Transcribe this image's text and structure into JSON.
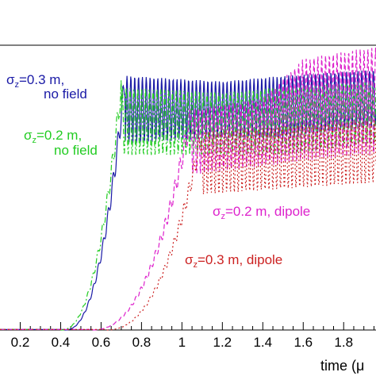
{
  "chart_data": {
    "type": "line",
    "title": "",
    "xlabel": "time (μ",
    "ylabel": "",
    "xlim": [
      0.1,
      1.96
    ],
    "ylim": [
      0,
      1.0
    ],
    "xticks": [
      "0.2",
      "0.4",
      "0.6",
      "0.8",
      "1",
      "1.2",
      "1.4",
      "1.6",
      "1.8"
    ],
    "xtick_values": [
      0.2,
      0.4,
      0.6,
      0.8,
      1.0,
      1.2,
      1.4,
      1.6,
      1.8
    ],
    "grid": false,
    "legend": "inline annotations",
    "series": [
      {
        "name": "σz=0.3 m, no field",
        "label_sym": "σ",
        "label_sub": "z",
        "label_rest": "=0.3 m,",
        "label_line2": "no field",
        "color": "#1a1aa6",
        "style": "solid",
        "onset": 0.42,
        "rise": 0.72,
        "envelope": [
          [
            0.72,
            0.9,
            0.66
          ],
          [
            1.2,
            0.88,
            0.68
          ],
          [
            1.5,
            0.9,
            0.68
          ],
          [
            1.92,
            0.92,
            0.72
          ]
        ]
      },
      {
        "name": "σz=0.2 m, no field",
        "label_sym": "σ",
        "label_sub": "z",
        "label_rest": "=0.2 m,",
        "label_line2": "no field",
        "color": "#22cc22",
        "style": "dashdot",
        "onset": 0.4,
        "rise": 0.7,
        "envelope": [
          [
            0.7,
            0.86,
            0.62
          ],
          [
            1.2,
            0.84,
            0.62
          ],
          [
            1.5,
            0.86,
            0.62
          ],
          [
            1.92,
            0.88,
            0.66
          ]
        ]
      },
      {
        "name": "σz=0.2 m, dipole",
        "label_sym": "σ",
        "label_sub": "z",
        "label_rest": "=0.2 m, dipole",
        "label_line2": "",
        "color": "#dd22cc",
        "style": "dashed",
        "onset": 0.55,
        "rise": 1.05,
        "envelope": [
          [
            1.05,
            0.78,
            0.55
          ],
          [
            1.4,
            0.82,
            0.58
          ],
          [
            1.6,
            0.96,
            0.6
          ],
          [
            1.92,
            1.0,
            0.62
          ]
        ]
      },
      {
        "name": "σz=0.3 m, dipole",
        "label_sym": "σ",
        "label_sub": "z",
        "label_rest": "=0.3 m, dipole",
        "label_line2": "",
        "color": "#cc2222",
        "style": "dotted",
        "onset": 0.62,
        "rise": 1.1,
        "envelope": [
          [
            1.1,
            0.7,
            0.48
          ],
          [
            1.5,
            0.72,
            0.5
          ],
          [
            1.92,
            0.74,
            0.52
          ]
        ]
      }
    ]
  }
}
